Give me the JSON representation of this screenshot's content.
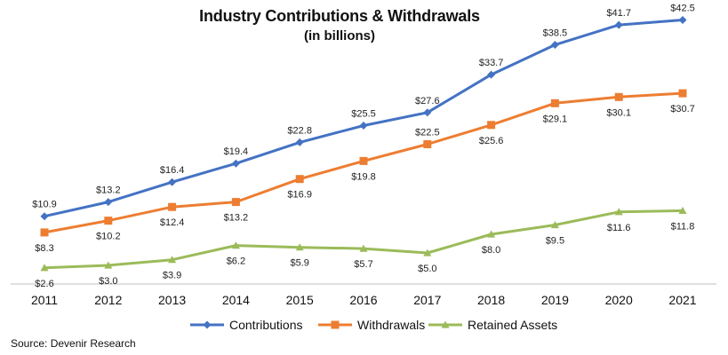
{
  "chart_data": {
    "type": "line",
    "title": "Industry Contributions & Withdrawals",
    "subtitle": "(in billions)",
    "xlabel": "",
    "ylabel": "",
    "x": [
      "2011",
      "2012",
      "2013",
      "2014",
      "2015",
      "2016",
      "2017",
      "2018",
      "2019",
      "2020",
      "2021"
    ],
    "ylim": [
      0,
      45
    ],
    "grid": false,
    "legend_position": "bottom",
    "series": [
      {
        "name": "Contributions",
        "color": "#4472C4",
        "marker": "diamond",
        "values": [
          10.9,
          13.2,
          16.4,
          19.4,
          22.8,
          25.5,
          27.6,
          33.7,
          38.5,
          41.7,
          42.5
        ],
        "labels": [
          "$10.9",
          "$13.2",
          "$16.4",
          "$19.4",
          "$22.8",
          "$25.5",
          "$27.6",
          "$33.7",
          "$38.5",
          "$41.7",
          "$42.5"
        ]
      },
      {
        "name": "Withdrawals",
        "color": "#ED7D31",
        "marker": "square",
        "values": [
          8.3,
          10.2,
          12.4,
          13.2,
          16.9,
          19.8,
          22.5,
          25.6,
          29.1,
          30.1,
          30.7
        ],
        "labels": [
          "$8.3",
          "$10.2",
          "$12.4",
          "$13.2",
          "$16.9",
          "$19.8",
          "$22.5",
          "$25.6",
          "$29.1",
          "$30.1",
          "$30.7"
        ]
      },
      {
        "name": "Retained Assets",
        "color": "#9BBB59",
        "marker": "triangle",
        "values": [
          2.6,
          3.0,
          3.9,
          6.2,
          5.9,
          5.7,
          5.0,
          8.0,
          9.5,
          11.6,
          11.8
        ],
        "labels": [
          "$2.6",
          "$3.0",
          "$3.9",
          "$6.2",
          "$5.9",
          "$5.7",
          "$5.0",
          "$8.0",
          "$9.5",
          "$11.6",
          "$11.8"
        ]
      }
    ]
  },
  "footer": {
    "source": "Source: Devenir Research"
  }
}
